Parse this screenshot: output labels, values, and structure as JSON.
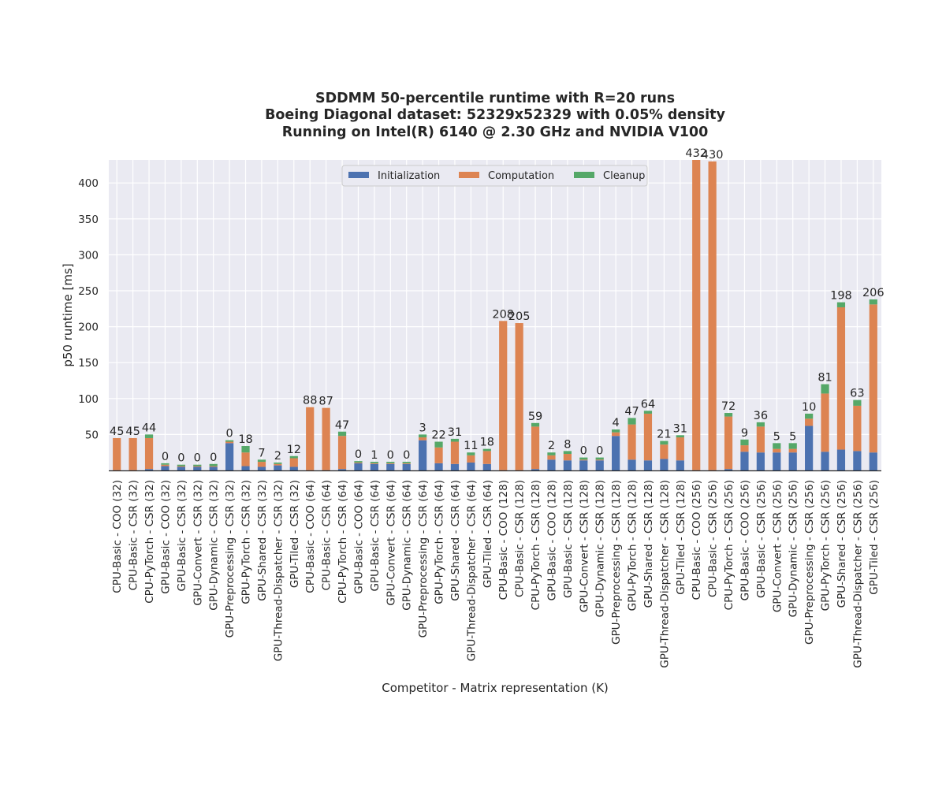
{
  "chart_data": {
    "type": "bar",
    "stacked": true,
    "title_lines": [
      "SDDMM 50-percentile runtime with R=20 runs",
      "Boeing Diagonal dataset: 52329x52329 with 0.05% density",
      "Running on Intel(R) 6140 @ 2.30 GHz and NVIDIA V100"
    ],
    "xlabel": "Competitor - Matrix representation (K)",
    "ylabel": "p50 runtime [ms]",
    "ylim": [
      0,
      432
    ],
    "yticks": [
      50,
      100,
      150,
      200,
      250,
      300,
      350,
      400
    ],
    "grid": true,
    "legend_position": "top-center",
    "categories": [
      "CPU-Basic - COO (32)",
      "CPU-Basic - CSR (32)",
      "CPU-PyTorch - CSR (32)",
      "GPU-Basic - COO (32)",
      "GPU-Basic - CSR (32)",
      "GPU-Convert - CSR (32)",
      "GPU-Dynamic - CSR (32)",
      "GPU-Preprocessing - CSR (32)",
      "GPU-PyTorch - CSR (32)",
      "GPU-Shared - CSR (32)",
      "GPU-Thread-Dispatcher - CSR (32)",
      "GPU-Tiled - CSR (32)",
      "CPU-Basic - COO (64)",
      "CPU-Basic - CSR (64)",
      "CPU-PyTorch - CSR (64)",
      "GPU-Basic - COO (64)",
      "GPU-Basic - CSR (64)",
      "GPU-Convert - CSR (64)",
      "GPU-Dynamic - CSR (64)",
      "GPU-Preprocessing - CSR (64)",
      "GPU-PyTorch - CSR (64)",
      "GPU-Shared - CSR (64)",
      "GPU-Thread-Dispatcher - CSR (64)",
      "GPU-Tiled - CSR (64)",
      "CPU-Basic - COO (128)",
      "CPU-Basic - CSR (128)",
      "CPU-PyTorch - CSR (128)",
      "GPU-Basic - COO (128)",
      "GPU-Basic - CSR (128)",
      "GPU-Convert - CSR (128)",
      "GPU-Dynamic - CSR (128)",
      "GPU-Preprocessing - CSR (128)",
      "GPU-PyTorch - CSR (128)",
      "GPU-Shared - CSR (128)",
      "GPU-Thread-Dispatcher - CSR (128)",
      "GPU-Tiled - CSR (128)",
      "CPU-Basic - COO (256)",
      "CPU-Basic - CSR (256)",
      "CPU-PyTorch - CSR (256)",
      "GPU-Basic - COO (256)",
      "GPU-Basic - CSR (256)",
      "GPU-Convert - CSR (256)",
      "GPU-Dynamic - CSR (256)",
      "GPU-Preprocessing - CSR (256)",
      "GPU-PyTorch - CSR (256)",
      "GPU-Shared - CSR (256)",
      "GPU-Thread-Dispatcher - CSR (256)",
      "GPU-Tiled - CSR (256)"
    ],
    "series": [
      {
        "name": "Initialization",
        "color": "#4c72b0",
        "values": [
          0.3,
          0.3,
          2,
          6,
          5,
          5,
          5,
          38,
          6,
          5,
          7,
          5,
          0.3,
          0.3,
          2,
          10,
          9,
          9,
          9,
          42,
          10,
          9,
          11,
          9,
          0.3,
          0.3,
          2,
          15,
          14,
          14,
          14,
          48,
          15,
          14,
          16,
          14,
          0.3,
          0.3,
          2,
          26,
          25,
          25,
          25,
          62,
          26,
          29,
          27,
          25
        ]
      },
      {
        "name": "Computation",
        "color": "#dd8452",
        "values": [
          44.7,
          44.7,
          43,
          2,
          1,
          1,
          1,
          2,
          19,
          7,
          2,
          12,
          87.7,
          86.7,
          46,
          1,
          1,
          1,
          1,
          4,
          22,
          31,
          10,
          18,
          207.7,
          204.7,
          59,
          6,
          9,
          1,
          1,
          5,
          49,
          65,
          20,
          32,
          431.7,
          429.7,
          73,
          9,
          36,
          5,
          5,
          10,
          81,
          198,
          63,
          206
        ]
      },
      {
        "name": "Cleanup",
        "color": "#55a868",
        "values": [
          0,
          0,
          5,
          2,
          2,
          2,
          3,
          2,
          9,
          3,
          2,
          3,
          0,
          0,
          6,
          2,
          2,
          2,
          2,
          4,
          8,
          4,
          4,
          3,
          0,
          0,
          5,
          4,
          4,
          3,
          3,
          4,
          9,
          4,
          5,
          3,
          0,
          0,
          5,
          8,
          6,
          8,
          8,
          7,
          13,
          7,
          8,
          7
        ]
      }
    ],
    "bar_labels": [
      "45",
      "45",
      "44",
      "0",
      "0",
      "0",
      "0",
      "0",
      "18",
      "7",
      "2",
      "12",
      "88",
      "87",
      "47",
      "0",
      "1",
      "0",
      "0",
      "3",
      "22",
      "31",
      "11",
      "18",
      "208",
      "205",
      "59",
      "2",
      "8",
      "0",
      "0",
      "4",
      "47",
      "64",
      "21",
      "31",
      "432",
      "430",
      "72",
      "9",
      "36",
      "5",
      "5",
      "10",
      "81",
      "198",
      "63",
      "206"
    ]
  }
}
